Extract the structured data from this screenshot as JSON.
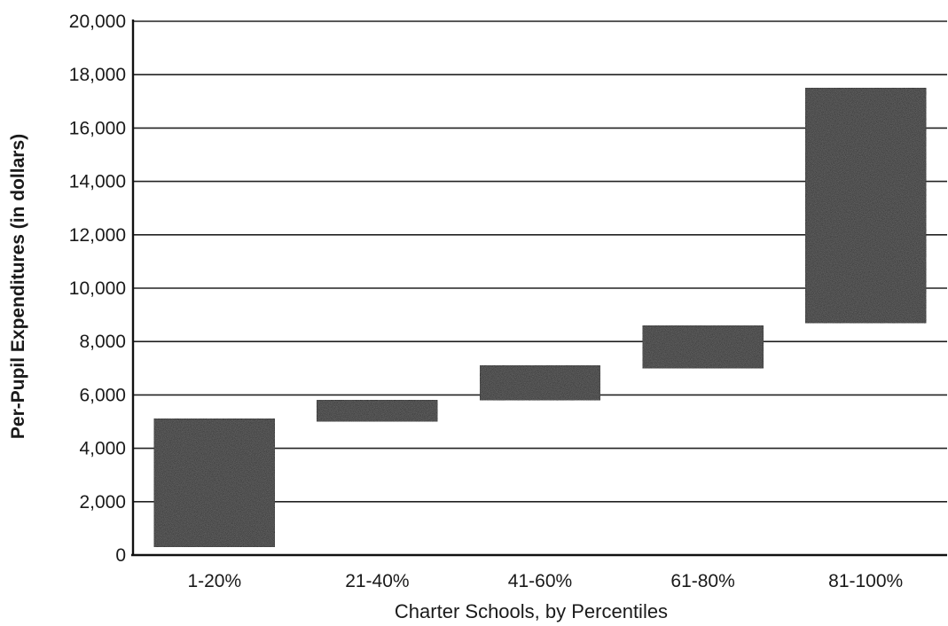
{
  "chart_data": {
    "type": "bar",
    "subtype": "floating-range",
    "title": "",
    "xlabel": "Charter Schools, by Percentiles",
    "ylabel": "Per-Pupil Expenditures (in dollars)",
    "ylim": [
      0,
      20000
    ],
    "yticks": [
      "0",
      "2,000",
      "4,000",
      "6,000",
      "8,000",
      "10,000",
      "12,000",
      "14,000",
      "16,000",
      "18,000",
      "20,000"
    ],
    "grid": "horizontal",
    "legend": "none",
    "bar_color": "#3a3a3a",
    "categories": [
      "1-20%",
      "21-40%",
      "41-60%",
      "61-80%",
      "81-100%"
    ],
    "ranges": [
      {
        "low": 300,
        "high": 5100
      },
      {
        "low": 5000,
        "high": 5800
      },
      {
        "low": 5800,
        "high": 7100
      },
      {
        "low": 7000,
        "high": 8600
      },
      {
        "low": 8700,
        "high": 17500
      }
    ]
  }
}
